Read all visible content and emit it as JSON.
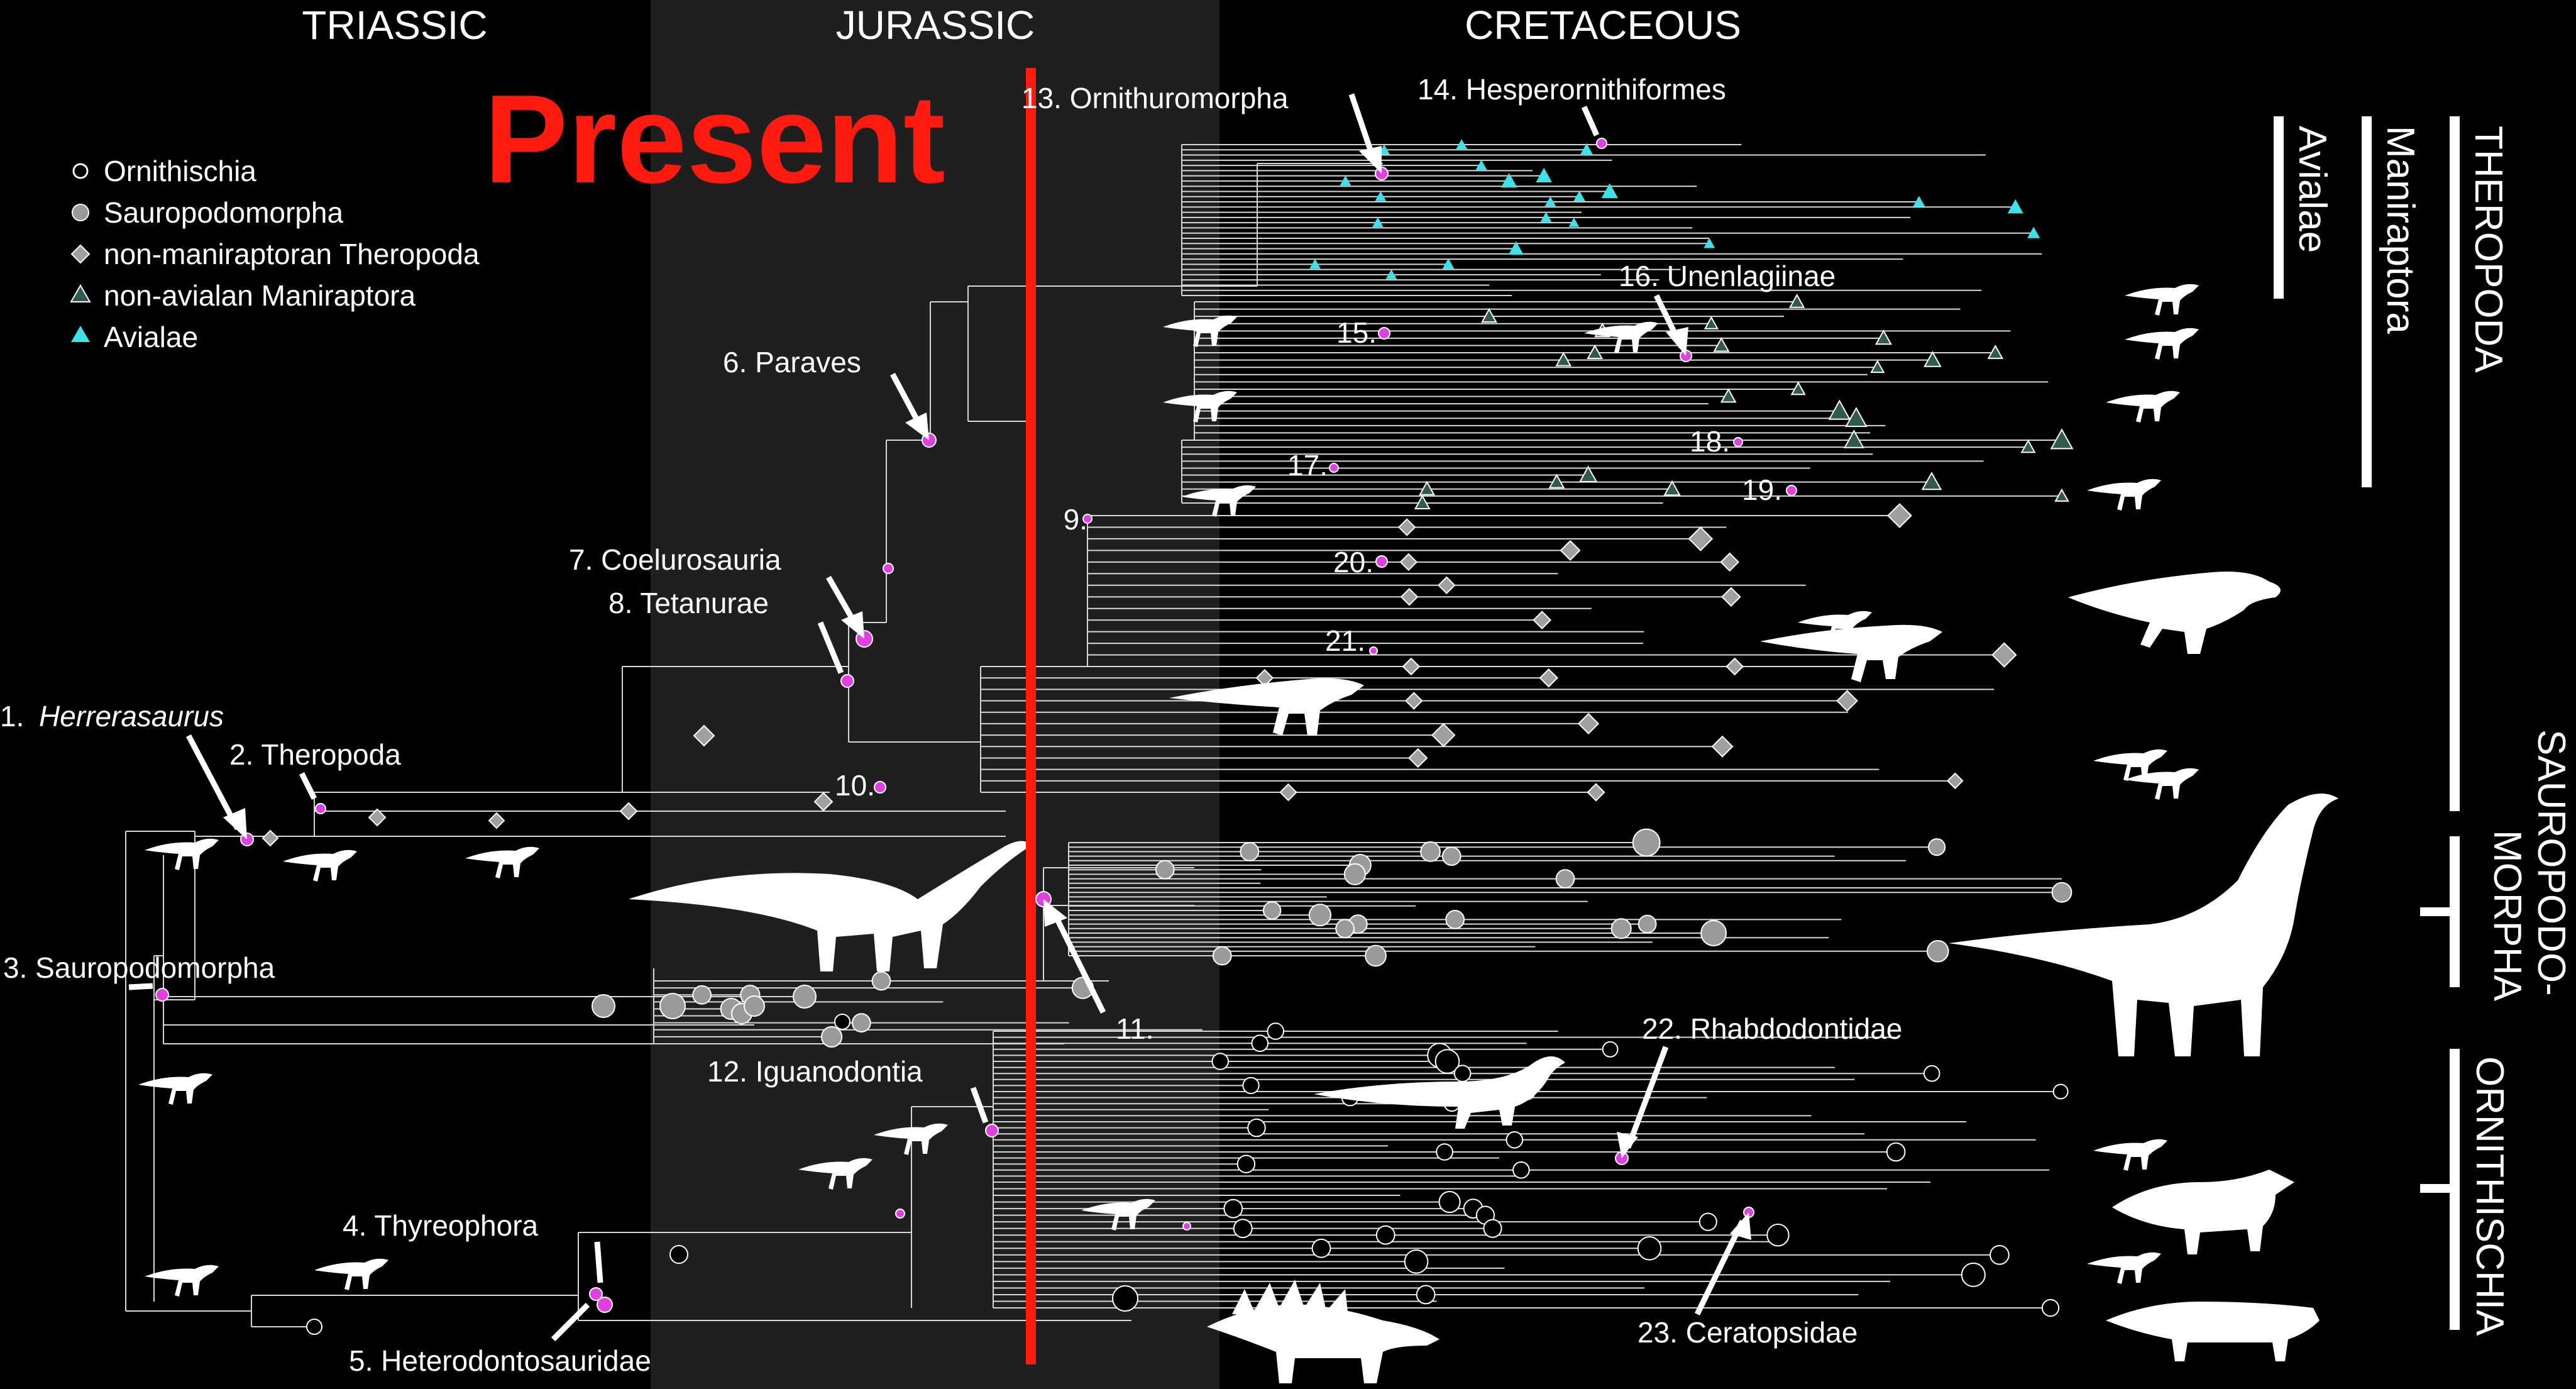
{
  "periods": {
    "triassic": "TRIASSIC",
    "jurassic": "JURASSIC",
    "cretaceous": "CRETACEOUS"
  },
  "present_label": "Present",
  "legend": [
    {
      "label": "Ornithischia",
      "marker": "open-circle"
    },
    {
      "label": "Sauropodomorpha",
      "marker": "grey-circle"
    },
    {
      "label": "non-maniraptoran Theropoda",
      "marker": "grey-diamond"
    },
    {
      "label": "non-avialan Maniraptora",
      "marker": "green-triangle"
    },
    {
      "label": "Avialae",
      "marker": "cyan-triangle"
    }
  ],
  "nodes": {
    "n1_num": "1.",
    "n1_name": "Herrerasaurus",
    "n2": "2. Theropoda",
    "n3": "3. Sauropodomorpha",
    "n4": "4. Thyreophora",
    "n5": "5. Heterodontosauridae",
    "n6": "6. Paraves",
    "n7": "7. Coelurosauria",
    "n8": "8. Tetanurae",
    "n9": "9.",
    "n10": "10.",
    "n11": "11.",
    "n12": "12. Iguanodontia",
    "n13": "13. Ornithuromorpha",
    "n14": "14. Hesperornithiformes",
    "n15": "15.",
    "n16": "16. Unenlagiinae",
    "n17": "17.",
    "n18": "18.",
    "n19": "19.",
    "n20": "20.",
    "n21": "21.",
    "n22": "22. Rhabdodontidae",
    "n23": "23. Ceratopsidae"
  },
  "clades": {
    "avialae": "Avialae",
    "maniraptora": "Maniraptora",
    "theropoda": "THEROPODA",
    "sauropodomorpha_1": "SAUROPODO-",
    "sauropodomorpha_2": "MORPHA",
    "ornithischia": "ORNITHISCHIA"
  },
  "colors": {
    "background": "#000000",
    "jurassic_band": "#1f1f1f",
    "present_line": "#ff1a10",
    "node_highlight": "#e040e0",
    "avialae": "#40e0e8",
    "maniraptora": "#2f5a50",
    "theropoda_marker": "#a0a0a0",
    "sauropodomorpha_marker": "#9a9a9a"
  }
}
